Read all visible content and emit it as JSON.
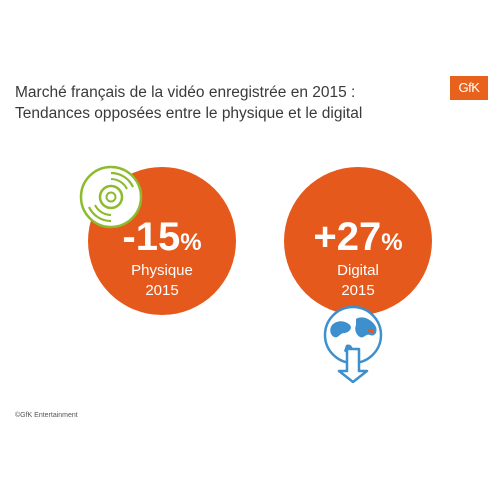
{
  "header": {
    "title_line1": "Marché français de la vidéo enregistrée en 2015 :",
    "title_line2": "Tendances opposées entre le physique et le digital",
    "logo_text": "GfK"
  },
  "stats": [
    {
      "value": "-15",
      "unit": "%",
      "category": "Physique",
      "year": "2015",
      "icon": "cd-icon"
    },
    {
      "value": "+27",
      "unit": "%",
      "category": "Digital",
      "year": "2015",
      "icon": "globe-download-icon"
    }
  ],
  "footer": {
    "copyright": "©GfK Entertainment"
  },
  "colors": {
    "accent": "#e55a1c",
    "logo": "#e8621e",
    "cd_icon": "#8dbb2d",
    "globe_icon": "#3e8fce"
  }
}
